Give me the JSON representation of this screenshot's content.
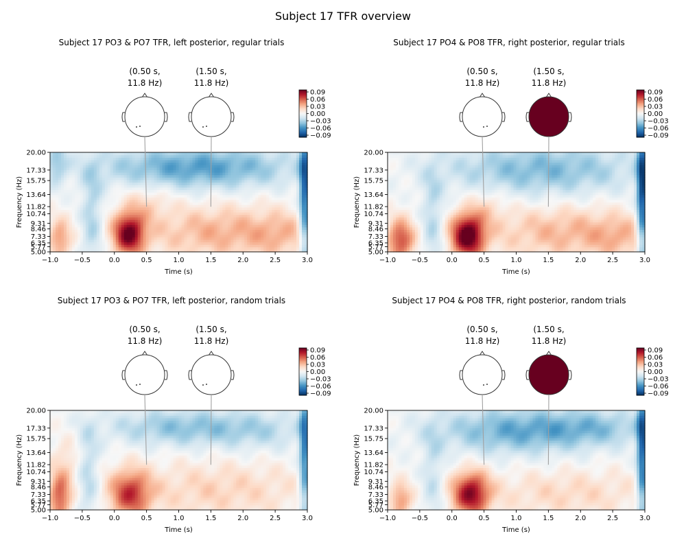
{
  "figure_title": "Subject 17 TFR overview",
  "colors": {
    "cmap": [
      "#053061",
      "#2166ac",
      "#4393c3",
      "#92c5de",
      "#d1e5f0",
      "#f7f7f7",
      "#fddbc7",
      "#f4a582",
      "#d6604d",
      "#b2182b",
      "#67001f"
    ],
    "head_line": "#333333",
    "connector": "#a0a0a0",
    "topo_saturated": "#67001f",
    "topo_blank": "#ffffff"
  },
  "chart_data": [
    {
      "type": "heatmap",
      "title": "Subject 17 PO3 & PO7 TFR, left posterior, regular trials",
      "xlabel": "Time (s)",
      "ylabel": "Frequency (Hz)",
      "xlim": [
        -1.0,
        3.0
      ],
      "ylim": [
        5.0,
        20.0
      ],
      "x_ticks": [
        -1.0,
        -0.5,
        0.0,
        0.5,
        1.0,
        1.5,
        2.0,
        2.5,
        3.0
      ],
      "x_tick_labels": [
        "−1.0",
        "−0.5",
        "0.0",
        "0.5",
        "1.0",
        "1.5",
        "2.0",
        "2.5",
        "3.0"
      ],
      "y_ticks": [
        5.0,
        5.77,
        6.35,
        7.33,
        8.46,
        9.31,
        10.74,
        11.82,
        13.64,
        15.75,
        17.33,
        20.0
      ],
      "y_tick_labels": [
        "5.00",
        "5.77",
        "6.35",
        "7.33",
        "8.46",
        "9.31",
        "10.74",
        "11.82",
        "13.64",
        "15.75",
        "17.33",
        "20.00"
      ],
      "colorbar": {
        "vmin": -0.09,
        "vmax": 0.09,
        "ticks": [
          "0.09",
          "0.06",
          "0.03",
          "0.00",
          "−0.03",
          "−0.06",
          "−0.09"
        ]
      },
      "topomaps": [
        {
          "label_time": "(0.50 s,",
          "label_freq": "11.8 Hz)",
          "time": 0.5,
          "freq": 11.8,
          "filled": false
        },
        {
          "label_time": "(1.50 s,",
          "label_freq": "11.8 Hz)",
          "time": 1.5,
          "freq": 11.8,
          "filled": false
        }
      ],
      "components": [
        {
          "t": -0.85,
          "f": 7.0,
          "st": 0.12,
          "sf": 2.0,
          "a": 0.04
        },
        {
          "t": 0.23,
          "f": 7.8,
          "st": 0.17,
          "sf": 2.2,
          "a": 0.085
        },
        {
          "t": 1.7,
          "f": 8.0,
          "st": 0.9,
          "sf": 2.8,
          "a": 0.032
        },
        {
          "t": 2.6,
          "f": 7.5,
          "st": 0.3,
          "sf": 2.2,
          "a": 0.014
        },
        {
          "t": -0.35,
          "f": 10.0,
          "st": 0.12,
          "sf": 6.0,
          "a": -0.028
        },
        {
          "t": 1.3,
          "f": 17.8,
          "st": 1.1,
          "sf": 2.3,
          "a": -0.05
        },
        {
          "t": -0.9,
          "f": 18.5,
          "st": 0.12,
          "sf": 2.2,
          "a": -0.03
        },
        {
          "t": 2.96,
          "f": 14.0,
          "st": 0.06,
          "sf": 8.0,
          "a": -0.07
        },
        {
          "t": 0.5,
          "f": 12.5,
          "st": 0.25,
          "sf": 2.0,
          "a": 0.016
        }
      ]
    },
    {
      "type": "heatmap",
      "title": "Subject 17 PO4 & PO8 TFR, right posterior, regular trials",
      "xlabel": "Time (s)",
      "ylabel": "Frequency (Hz)",
      "xlim": [
        -1.0,
        3.0
      ],
      "ylim": [
        5.0,
        20.0
      ],
      "x_ticks": [
        -1.0,
        -0.5,
        0.0,
        0.5,
        1.0,
        1.5,
        2.0,
        2.5,
        3.0
      ],
      "x_tick_labels": [
        "−1.0",
        "−0.5",
        "0.0",
        "0.5",
        "1.0",
        "1.5",
        "2.0",
        "2.5",
        "3.0"
      ],
      "y_ticks": [
        5.0,
        5.77,
        6.35,
        7.33,
        8.46,
        9.31,
        10.74,
        11.82,
        13.64,
        15.75,
        17.33,
        20.0
      ],
      "y_tick_labels": [
        "5.00",
        "5.77",
        "6.35",
        "7.33",
        "8.46",
        "9.31",
        "10.74",
        "11.82",
        "13.64",
        "15.75",
        "17.33",
        "20.00"
      ],
      "colorbar": {
        "vmin": -0.09,
        "vmax": 0.09,
        "ticks": [
          "0.09",
          "0.06",
          "0.03",
          "0.00",
          "−0.03",
          "−0.06",
          "−0.09"
        ]
      },
      "topomaps": [
        {
          "label_time": "(0.50 s,",
          "label_freq": "11.8 Hz)",
          "time": 0.5,
          "freq": 11.8,
          "filled": false
        },
        {
          "label_time": "(1.50 s,",
          "label_freq": "11.8 Hz)",
          "time": 1.5,
          "freq": 11.8,
          "filled": true
        }
      ],
      "components": [
        {
          "t": -0.8,
          "f": 6.8,
          "st": 0.15,
          "sf": 2.2,
          "a": 0.06
        },
        {
          "t": 0.25,
          "f": 7.5,
          "st": 0.18,
          "sf": 2.3,
          "a": 0.095
        },
        {
          "t": 1.8,
          "f": 8.0,
          "st": 0.9,
          "sf": 2.8,
          "a": 0.03
        },
        {
          "t": 2.6,
          "f": 7.0,
          "st": 0.3,
          "sf": 2.0,
          "a": 0.015
        },
        {
          "t": -0.3,
          "f": 9.5,
          "st": 0.12,
          "sf": 6.0,
          "a": -0.025
        },
        {
          "t": 1.4,
          "f": 17.5,
          "st": 1.1,
          "sf": 2.8,
          "a": -0.04
        },
        {
          "t": 2.96,
          "f": 14.0,
          "st": 0.06,
          "sf": 8.0,
          "a": -0.08
        },
        {
          "t": 0.55,
          "f": 12.0,
          "st": 0.2,
          "sf": 2.0,
          "a": 0.015
        }
      ]
    },
    {
      "type": "heatmap",
      "title": "Subject 17 PO3 & PO7 TFR, left posterior, random trials",
      "xlabel": "Time (s)",
      "ylabel": "Frequency (Hz)",
      "xlim": [
        -1.0,
        3.0
      ],
      "ylim": [
        5.0,
        20.0
      ],
      "x_ticks": [
        -1.0,
        -0.5,
        0.0,
        0.5,
        1.0,
        1.5,
        2.0,
        2.5,
        3.0
      ],
      "x_tick_labels": [
        "−1.0",
        "−0.5",
        "0.0",
        "0.5",
        "1.0",
        "1.5",
        "2.0",
        "2.5",
        "3.0"
      ],
      "y_ticks": [
        5.0,
        5.77,
        6.35,
        7.33,
        8.46,
        9.31,
        10.74,
        11.82,
        13.64,
        15.75,
        17.33,
        20.0
      ],
      "y_tick_labels": [
        "5.00",
        "5.77",
        "6.35",
        "7.33",
        "8.46",
        "9.31",
        "10.74",
        "11.82",
        "13.64",
        "15.75",
        "17.33",
        "20.00"
      ],
      "colorbar": {
        "vmin": -0.09,
        "vmax": 0.09,
        "ticks": [
          "0.09",
          "0.06",
          "0.03",
          "0.00",
          "−0.03",
          "−0.06",
          "−0.09"
        ]
      },
      "topomaps": [
        {
          "label_time": "(0.50 s,",
          "label_freq": "11.8 Hz)",
          "time": 0.5,
          "freq": 11.8,
          "filled": false
        },
        {
          "label_time": "(1.50 s,",
          "label_freq": "11.8 Hz)",
          "time": 1.5,
          "freq": 11.8,
          "filled": false
        }
      ],
      "components": [
        {
          "t": -0.85,
          "f": 7.0,
          "st": 0.12,
          "sf": 2.5,
          "a": 0.055
        },
        {
          "t": 0.25,
          "f": 7.5,
          "st": 0.22,
          "sf": 2.5,
          "a": 0.06
        },
        {
          "t": 1.6,
          "f": 8.0,
          "st": 1.0,
          "sf": 3.0,
          "a": 0.02
        },
        {
          "t": -0.4,
          "f": 10.0,
          "st": 0.12,
          "sf": 6.0,
          "a": -0.025
        },
        {
          "t": 1.0,
          "f": 17.5,
          "st": 0.8,
          "sf": 2.0,
          "a": -0.035
        },
        {
          "t": 2.96,
          "f": 14.0,
          "st": 0.06,
          "sf": 8.0,
          "a": -0.06
        },
        {
          "t": 2.3,
          "f": 17.0,
          "st": 0.6,
          "sf": 2.2,
          "a": -0.02
        },
        {
          "t": -0.75,
          "f": 12.5,
          "st": 0.15,
          "sf": 2.5,
          "a": 0.015
        }
      ]
    },
    {
      "type": "heatmap",
      "title": "Subject 17 PO4 & PO8 TFR, right posterior, random trials",
      "xlabel": "Time (s)",
      "ylabel": "Frequency (Hz)",
      "xlim": [
        -1.0,
        3.0
      ],
      "ylim": [
        5.0,
        20.0
      ],
      "x_ticks": [
        -1.0,
        -0.5,
        0.0,
        0.5,
        1.0,
        1.5,
        2.0,
        2.5,
        3.0
      ],
      "x_tick_labels": [
        "−1.0",
        "−0.5",
        "0.0",
        "0.5",
        "1.0",
        "1.5",
        "2.0",
        "2.5",
        "3.0"
      ],
      "y_ticks": [
        5.0,
        5.77,
        6.35,
        7.33,
        8.46,
        9.31,
        10.74,
        11.82,
        13.64,
        15.75,
        17.33,
        20.0
      ],
      "y_tick_labels": [
        "5.00",
        "5.77",
        "6.35",
        "7.33",
        "8.46",
        "9.31",
        "10.74",
        "11.82",
        "13.64",
        "15.75",
        "17.33",
        "20.00"
      ],
      "colorbar": {
        "vmin": -0.09,
        "vmax": 0.09,
        "ticks": [
          "0.09",
          "0.06",
          "0.03",
          "0.00",
          "−0.03",
          "−0.06",
          "−0.09"
        ]
      },
      "topomaps": [
        {
          "label_time": "(0.50 s,",
          "label_freq": "11.8 Hz)",
          "time": 0.5,
          "freq": 11.8,
          "filled": false
        },
        {
          "label_time": "(1.50 s,",
          "label_freq": "11.8 Hz)",
          "time": 1.5,
          "freq": 11.8,
          "filled": true
        }
      ],
      "components": [
        {
          "t": -0.8,
          "f": 6.5,
          "st": 0.12,
          "sf": 1.8,
          "a": 0.04
        },
        {
          "t": 0.3,
          "f": 7.5,
          "st": 0.2,
          "sf": 2.3,
          "a": 0.08
        },
        {
          "t": 1.8,
          "f": 7.5,
          "st": 0.9,
          "sf": 2.5,
          "a": 0.018
        },
        {
          "t": -0.3,
          "f": 9.5,
          "st": 0.12,
          "sf": 6.0,
          "a": -0.02
        },
        {
          "t": 1.0,
          "f": 17.0,
          "st": 0.9,
          "sf": 2.5,
          "a": -0.045
        },
        {
          "t": 2.96,
          "f": 14.0,
          "st": 0.06,
          "sf": 8.0,
          "a": -0.07
        },
        {
          "t": 2.3,
          "f": 17.5,
          "st": 0.6,
          "sf": 2.0,
          "a": -0.025
        }
      ]
    }
  ]
}
